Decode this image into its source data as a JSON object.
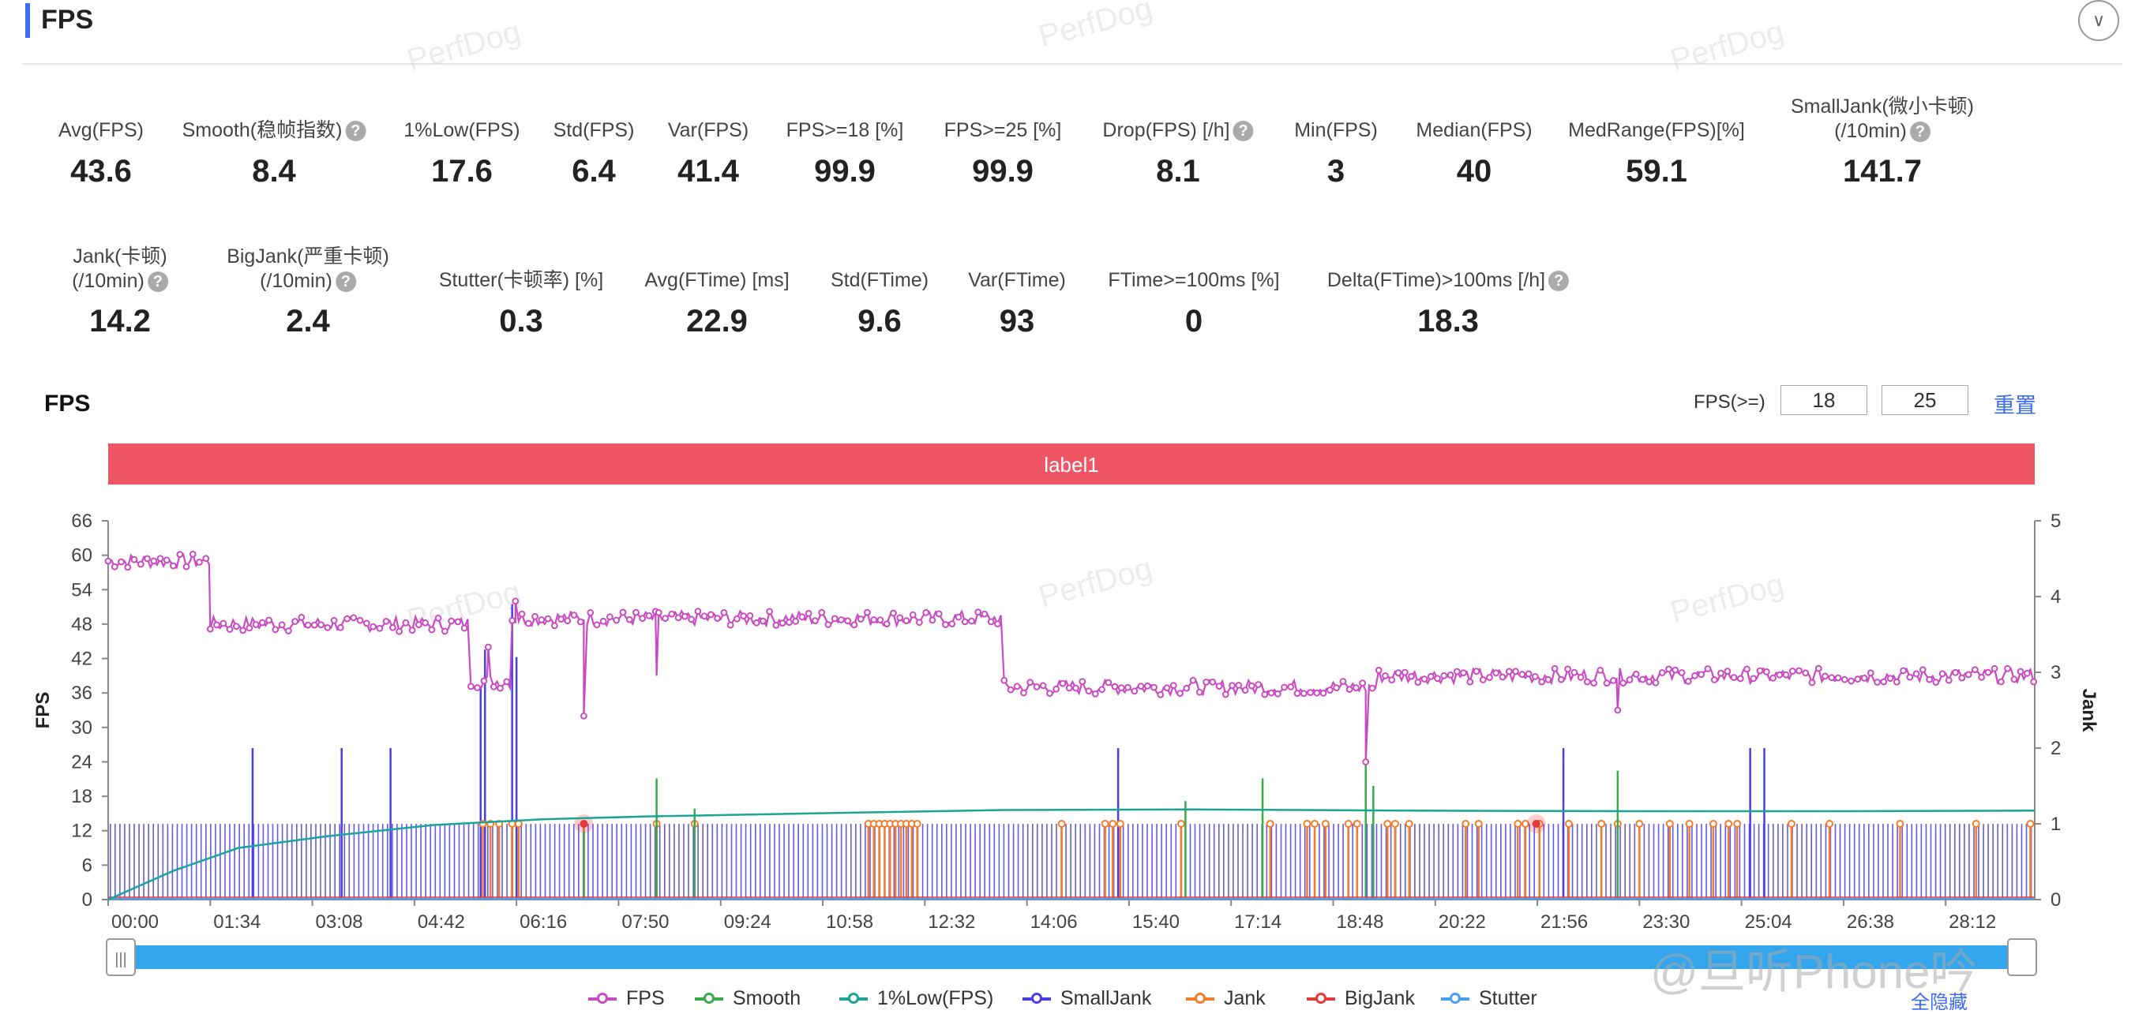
{
  "header": {
    "title": "FPS",
    "collapse_icon": "chevron-down-icon"
  },
  "metrics_row1": [
    {
      "label": "Avg(FPS)",
      "value": "43.6",
      "help": false
    },
    {
      "label": "Smooth(稳帧指数)",
      "value": "8.4",
      "help": true
    },
    {
      "label": "1%Low(FPS)",
      "value": "17.6",
      "help": false
    },
    {
      "label": "Std(FPS)",
      "value": "6.4",
      "help": false
    },
    {
      "label": "Var(FPS)",
      "value": "41.4",
      "help": false
    },
    {
      "label": "FPS>=18 [%]",
      "value": "99.9",
      "help": false
    },
    {
      "label": "FPS>=25 [%]",
      "value": "99.9",
      "help": false
    },
    {
      "label": "Drop(FPS) [/h]",
      "value": "8.1",
      "help": true
    },
    {
      "label": "Min(FPS)",
      "value": "3",
      "help": false
    },
    {
      "label": "Median(FPS)",
      "value": "40",
      "help": false
    },
    {
      "label": "MedRange(FPS)[%]",
      "value": "59.1",
      "help": false
    },
    {
      "label": "SmallJank(微小卡顿)",
      "label2": "(/10min)",
      "value": "141.7",
      "help": true
    }
  ],
  "metrics_row2": [
    {
      "label": "Jank(卡顿)",
      "label2": "(/10min)",
      "value": "14.2",
      "help": true
    },
    {
      "label": "BigJank(严重卡顿)",
      "label2": "(/10min)",
      "value": "2.4",
      "help": true
    },
    {
      "label": "Stutter(卡顿率) [%]",
      "value": "0.3",
      "help": false
    },
    {
      "label": "Avg(FTime) [ms]",
      "value": "22.9",
      "help": false
    },
    {
      "label": "Std(FTime)",
      "value": "9.6",
      "help": false
    },
    {
      "label": "Var(FTime)",
      "value": "93",
      "help": false
    },
    {
      "label": "FTime>=100ms [%]",
      "value": "0",
      "help": false
    },
    {
      "label": "Delta(FTime)>100ms [/h]",
      "value": "18.3",
      "help": true
    }
  ],
  "chart_section": {
    "title": "FPS",
    "filter_label": "FPS(>=)",
    "threshold_1": "18",
    "threshold_2": "25",
    "reset_label": "重置",
    "hide_all_label": "全隐藏"
  },
  "watermark": {
    "text": "PerfDog",
    "brand": "@旦听Phone吟"
  },
  "colors": {
    "fps": "#c94bc1",
    "smooth": "#3aaa4a",
    "low1": "#1aa596",
    "smalljank": "#4a3ee8",
    "jank": "#f57c28",
    "bigjank": "#e53a3a",
    "stutter": "#4aa0f0",
    "label_band": "#ee5565",
    "slider": "#34a6ee",
    "accent": "#3b6cf6"
  },
  "chart_data": {
    "type": "line",
    "label_band": "label1",
    "x_ticks": [
      "00:00",
      "01:34",
      "03:08",
      "04:42",
      "06:16",
      "07:50",
      "09:24",
      "10:58",
      "12:32",
      "14:06",
      "15:40",
      "17:14",
      "18:48",
      "20:22",
      "21:56",
      "23:30",
      "25:04",
      "26:38",
      "28:12"
    ],
    "xlim_seconds": [
      0,
      1774
    ],
    "ylabel": "FPS",
    "ylim": [
      0,
      66
    ],
    "y_ticks": [
      0,
      6,
      12,
      18,
      24,
      30,
      36,
      42,
      48,
      54,
      60,
      66
    ],
    "y2label": "Jank",
    "y2lim": [
      0,
      5
    ],
    "y2_ticks": [
      0,
      1,
      2,
      3,
      4,
      5
    ],
    "legend": [
      "FPS",
      "Smooth",
      "1%Low(FPS)",
      "SmallJank",
      "Jank",
      "BigJank",
      "Stutter"
    ],
    "series": [
      {
        "name": "FPS",
        "axis": "left",
        "segments": [
          {
            "from": 0,
            "to": 94,
            "level": 59
          },
          {
            "from": 94,
            "to": 334,
            "level": 48
          },
          {
            "from": 334,
            "to": 372,
            "level": 38
          },
          {
            "from": 372,
            "to": 825,
            "level": 49
          },
          {
            "from": 825,
            "to": 1170,
            "level": 37
          },
          {
            "from": 1170,
            "to": 1774,
            "level": 39
          }
        ],
        "dips": [
          {
            "x": 438,
            "y": 32
          },
          {
            "x": 505,
            "y": 39
          },
          {
            "x": 1158,
            "y": 24
          },
          {
            "x": 1390,
            "y": 33
          }
        ],
        "spikes": [
          {
            "x": 350,
            "y": 44
          },
          {
            "x": 375,
            "y": 52
          }
        ]
      },
      {
        "name": "Smooth",
        "axis": "right",
        "spikes": [
          {
            "x": 438,
            "y": 0.9
          },
          {
            "x": 505,
            "y": 1.6
          },
          {
            "x": 540,
            "y": 1.2
          },
          {
            "x": 992,
            "y": 1.3
          },
          {
            "x": 1063,
            "y": 1.6
          },
          {
            "x": 1158,
            "y": 1.8
          },
          {
            "x": 1165,
            "y": 1.5
          },
          {
            "x": 1390,
            "y": 1.7
          }
        ]
      },
      {
        "name": "1%Low(FPS)",
        "axis": "left",
        "points": [
          [
            0,
            0
          ],
          [
            60,
            5
          ],
          [
            120,
            9
          ],
          [
            200,
            11
          ],
          [
            300,
            13
          ],
          [
            400,
            14
          ],
          [
            500,
            14.5
          ],
          [
            700,
            15.2
          ],
          [
            825,
            15.6
          ],
          [
            1000,
            15.7
          ],
          [
            1200,
            15.5
          ],
          [
            1400,
            15.4
          ],
          [
            1600,
            15.4
          ],
          [
            1774,
            15.5
          ]
        ]
      },
      {
        "name": "SmallJank",
        "axis": "right",
        "baseline": 1,
        "tall_spikes": [
          {
            "x": 133,
            "y": 2
          },
          {
            "x": 215,
            "y": 2
          },
          {
            "x": 260,
            "y": 2
          },
          {
            "x": 343,
            "y": 2.8
          },
          {
            "x": 347,
            "y": 3.3
          },
          {
            "x": 372,
            "y": 3.9
          },
          {
            "x": 376,
            "y": 3.2
          },
          {
            "x": 438,
            "y": 0.9
          },
          {
            "x": 930,
            "y": 2
          },
          {
            "x": 1340,
            "y": 2
          },
          {
            "x": 1512,
            "y": 2
          },
          {
            "x": 1525,
            "y": 2
          }
        ]
      },
      {
        "name": "Jank",
        "axis": "right",
        "level": 1,
        "occurrences_seconds": [
          345,
          352,
          360,
          372,
          378,
          438,
          505,
          540,
          700,
          705,
          710,
          715,
          720,
          725,
          730,
          735,
          740,
          745,
          878,
          918,
          925,
          932,
          988,
          1070,
          1104,
          1111,
          1121,
          1142,
          1150,
          1178,
          1185,
          1198,
          1250,
          1262,
          1298,
          1305,
          1318,
          1345,
          1375,
          1390,
          1410,
          1438,
          1456,
          1478,
          1492,
          1500,
          1550,
          1585,
          1650,
          1720,
          1770
        ]
      },
      {
        "name": "BigJank",
        "axis": "right",
        "level": 1,
        "occurrences_seconds": [
          438,
          1315
        ]
      },
      {
        "name": "Stutter",
        "axis": "right",
        "level": 0
      }
    ]
  }
}
